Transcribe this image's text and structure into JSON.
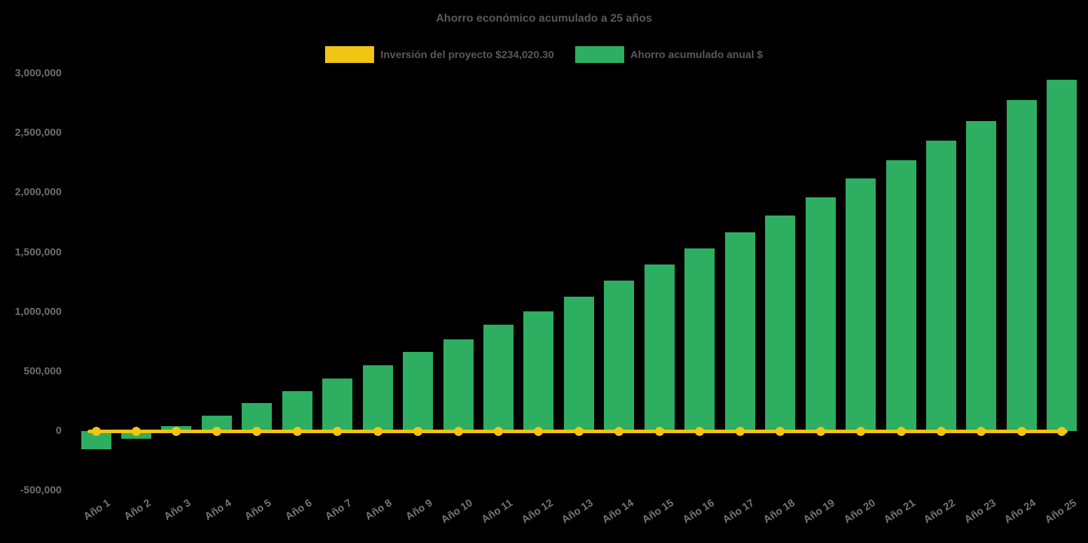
{
  "page": {
    "background": "#000000"
  },
  "title": "Ahorro económico acumulado a 25 años",
  "legend": {
    "items": [
      {
        "label": "Inversión del proyecto $234,020.30",
        "color": "#f2c413",
        "series": "investment-line"
      },
      {
        "label": "Ahorro acumulado anual $",
        "color": "#2dae60",
        "series": "savings-bars"
      }
    ]
  },
  "chart_data": {
    "type": "bar",
    "title": "Ahorro económico acumulado a 25 años",
    "categories": [
      "Año 1",
      "Año 2",
      "Año 3",
      "Año 4",
      "Año 5",
      "Año 6",
      "Año 7",
      "Año 8",
      "Año 9",
      "Año 10",
      "Año 11",
      "Año 12",
      "Año 13",
      "Año 14",
      "Año 15",
      "Año 16",
      "Año 17",
      "Año 18",
      "Año 19",
      "Año 20",
      "Año 21",
      "Año 22",
      "Año 23",
      "Año 24",
      "Año 25"
    ],
    "series": [
      {
        "name": "Ahorro acumulado anual $",
        "type": "bar",
        "color": "#2dae60",
        "values": [
          -150000,
          -65000,
          40000,
          130000,
          235000,
          335000,
          440000,
          550000,
          665000,
          770000,
          890000,
          1005000,
          1130000,
          1265000,
          1395000,
          1530000,
          1670000,
          1810000,
          1960000,
          2120000,
          2275000,
          2435000,
          2600000,
          2775000,
          2950000
        ]
      },
      {
        "name": "Inversión del proyecto $234,020.30",
        "type": "line",
        "color": "#f2c413",
        "investment_value": "234,020.30",
        "plotted_constant": 0,
        "marker": "circle"
      }
    ],
    "xlabel": "",
    "ylabel": "",
    "ylim": [
      -500000,
      3000000
    ],
    "grid": "off",
    "legend_position": "top-center",
    "yticks": [
      {
        "value": 3000000,
        "label": "3,000,000"
      },
      {
        "value": 2500000,
        "label": "2,500,000"
      },
      {
        "value": 2000000,
        "label": "2,000,000"
      },
      {
        "value": 1500000,
        "label": "1,500,000"
      },
      {
        "value": 1000000,
        "label": "1,000,000"
      },
      {
        "value": 500000,
        "label": "500,000"
      },
      {
        "value": 0,
        "label": "0"
      },
      {
        "value": -500000,
        "label": "-500,000"
      }
    ]
  },
  "colors": {
    "bar_green": "#2dae60",
    "line_yellow": "#f2c413",
    "title_text": "#595959",
    "axis_text": "#757575",
    "background": "#000000"
  }
}
